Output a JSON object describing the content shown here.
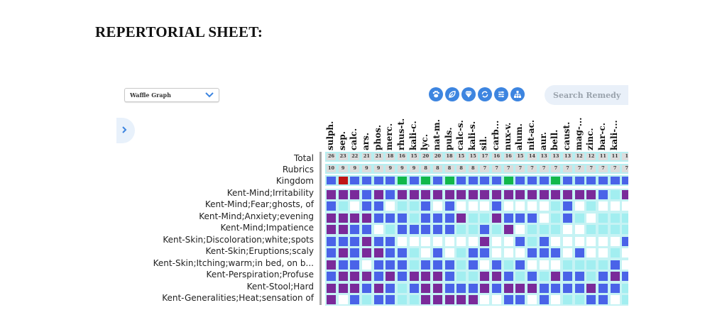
{
  "page": {
    "title": "REPERTORIAL SHEET:"
  },
  "toolbar": {
    "view_select": {
      "value": "Waffle Graph",
      "icon": "chevron-down-icon"
    },
    "icon_buttons": [
      {
        "name": "animal-kingdom-button",
        "icon": "paw-icon"
      },
      {
        "name": "plant-kingdom-button",
        "icon": "leaf-icon"
      },
      {
        "name": "mineral-kingdom-button",
        "icon": "diamond-icon"
      },
      {
        "name": "refresh-button",
        "icon": "refresh-icon"
      },
      {
        "name": "filter-button",
        "icon": "sliders-icon"
      },
      {
        "name": "hierarchy-button",
        "icon": "sitemap-icon"
      }
    ],
    "search": {
      "placeholder": "Search Remedy",
      "value": ""
    },
    "sidebar_toggle_icon": "chevron-right-icon"
  },
  "colors": {
    "purple": "#7a2a9a",
    "blue": "#4a63e8",
    "cyan": "#a2eef0",
    "white": "#ffffff",
    "red": "#c01515",
    "green": "#12b84a",
    "accent": "#3d85e0"
  },
  "chart_data": {
    "type": "heatmap",
    "title": "Waffle Graph",
    "row_headers": [
      "Total",
      "Rubrics",
      "Kingdom"
    ],
    "rows": [
      "Kent-Mind;Irritability",
      "Kent-Mind;Fear;ghosts, of",
      "Kent-Mind;Anxiety;evening",
      "Kent-Mind;Impatience",
      "Kent-Skin;Discoloration;white;spots",
      "Kent-Skin;Eruptions;scaly",
      "Kent-Skin;Itching;warm;in bed, on b...",
      "Kent-Perspiration;Profuse",
      "Kent-Stool;Hard",
      "Kent-Generalities;Heat;sensation of"
    ],
    "columns": [
      "sulph.",
      "sep.",
      "calc.",
      "ars.",
      "phos.",
      "merc.",
      "rhus-t.",
      "kali-c.",
      "lyc.",
      "nat-m.",
      "puls.",
      "calc-s.",
      "kali-s.",
      "sil.",
      "carb...",
      "nux-v.",
      "alum.",
      "nit-ac.",
      "aur.",
      "bell.",
      "caust.",
      "mag-...",
      "zinc.",
      "bar-c.",
      "kali-...",
      ""
    ],
    "totals": [
      "26",
      "23",
      "22",
      "21",
      "21",
      "18",
      "16",
      "15",
      "20",
      "20",
      "18",
      "15",
      "15",
      "17",
      "16",
      "16",
      "15",
      "14",
      "13",
      "13",
      "13",
      "12",
      "12",
      "11",
      "11",
      "1"
    ],
    "rubrics": [
      "10",
      "9",
      "9",
      "9",
      "9",
      "9",
      "9",
      "9",
      "8",
      "8",
      "8",
      "8",
      "8",
      "7",
      "7",
      "7",
      "7",
      "7",
      "7",
      "7",
      "7",
      "7",
      "7",
      "7",
      "7",
      "7"
    ],
    "kingdom": [
      "B",
      "R",
      "B",
      "B",
      "B",
      "B",
      "G",
      "B",
      "G",
      "B",
      "G",
      "B",
      "B",
      "B",
      "B",
      "G",
      "B",
      "B",
      "B",
      "G",
      "B",
      "B",
      "B",
      "B",
      "B",
      "B"
    ],
    "legend": {
      "P": "purple",
      "B": "blue",
      "C": "cyan",
      "W": "white",
      "R": "red",
      "G": "green"
    },
    "cells": [
      "PPPBPBPPPPPPPPPPPPPPPPPBCP",
      "BCWBBWCCBWBWWWBWWWWCBWCWWW",
      "PPPPBBBCBBBPCCPBBBWCBCWCCC",
      "PPBBWCBBBBBCCBCPWCCCWWCCCC",
      "BBBPBBWWWWWWWPWWBCBWWWWWWB",
      "BPBPPBBCWBWCBBWWWBBBWBWWCW",
      "PBBWBBBCBBBCBWBCBWWWCCCCBW",
      "BPPPBPBPPPBCCPPBCBCPBBCBPB",
      "PPPBPBCBPPBBBPBPPPBBBBPBBC",
      "PWBCBBCCPPPPPWWBBWBWCCBBWC"
    ]
  }
}
